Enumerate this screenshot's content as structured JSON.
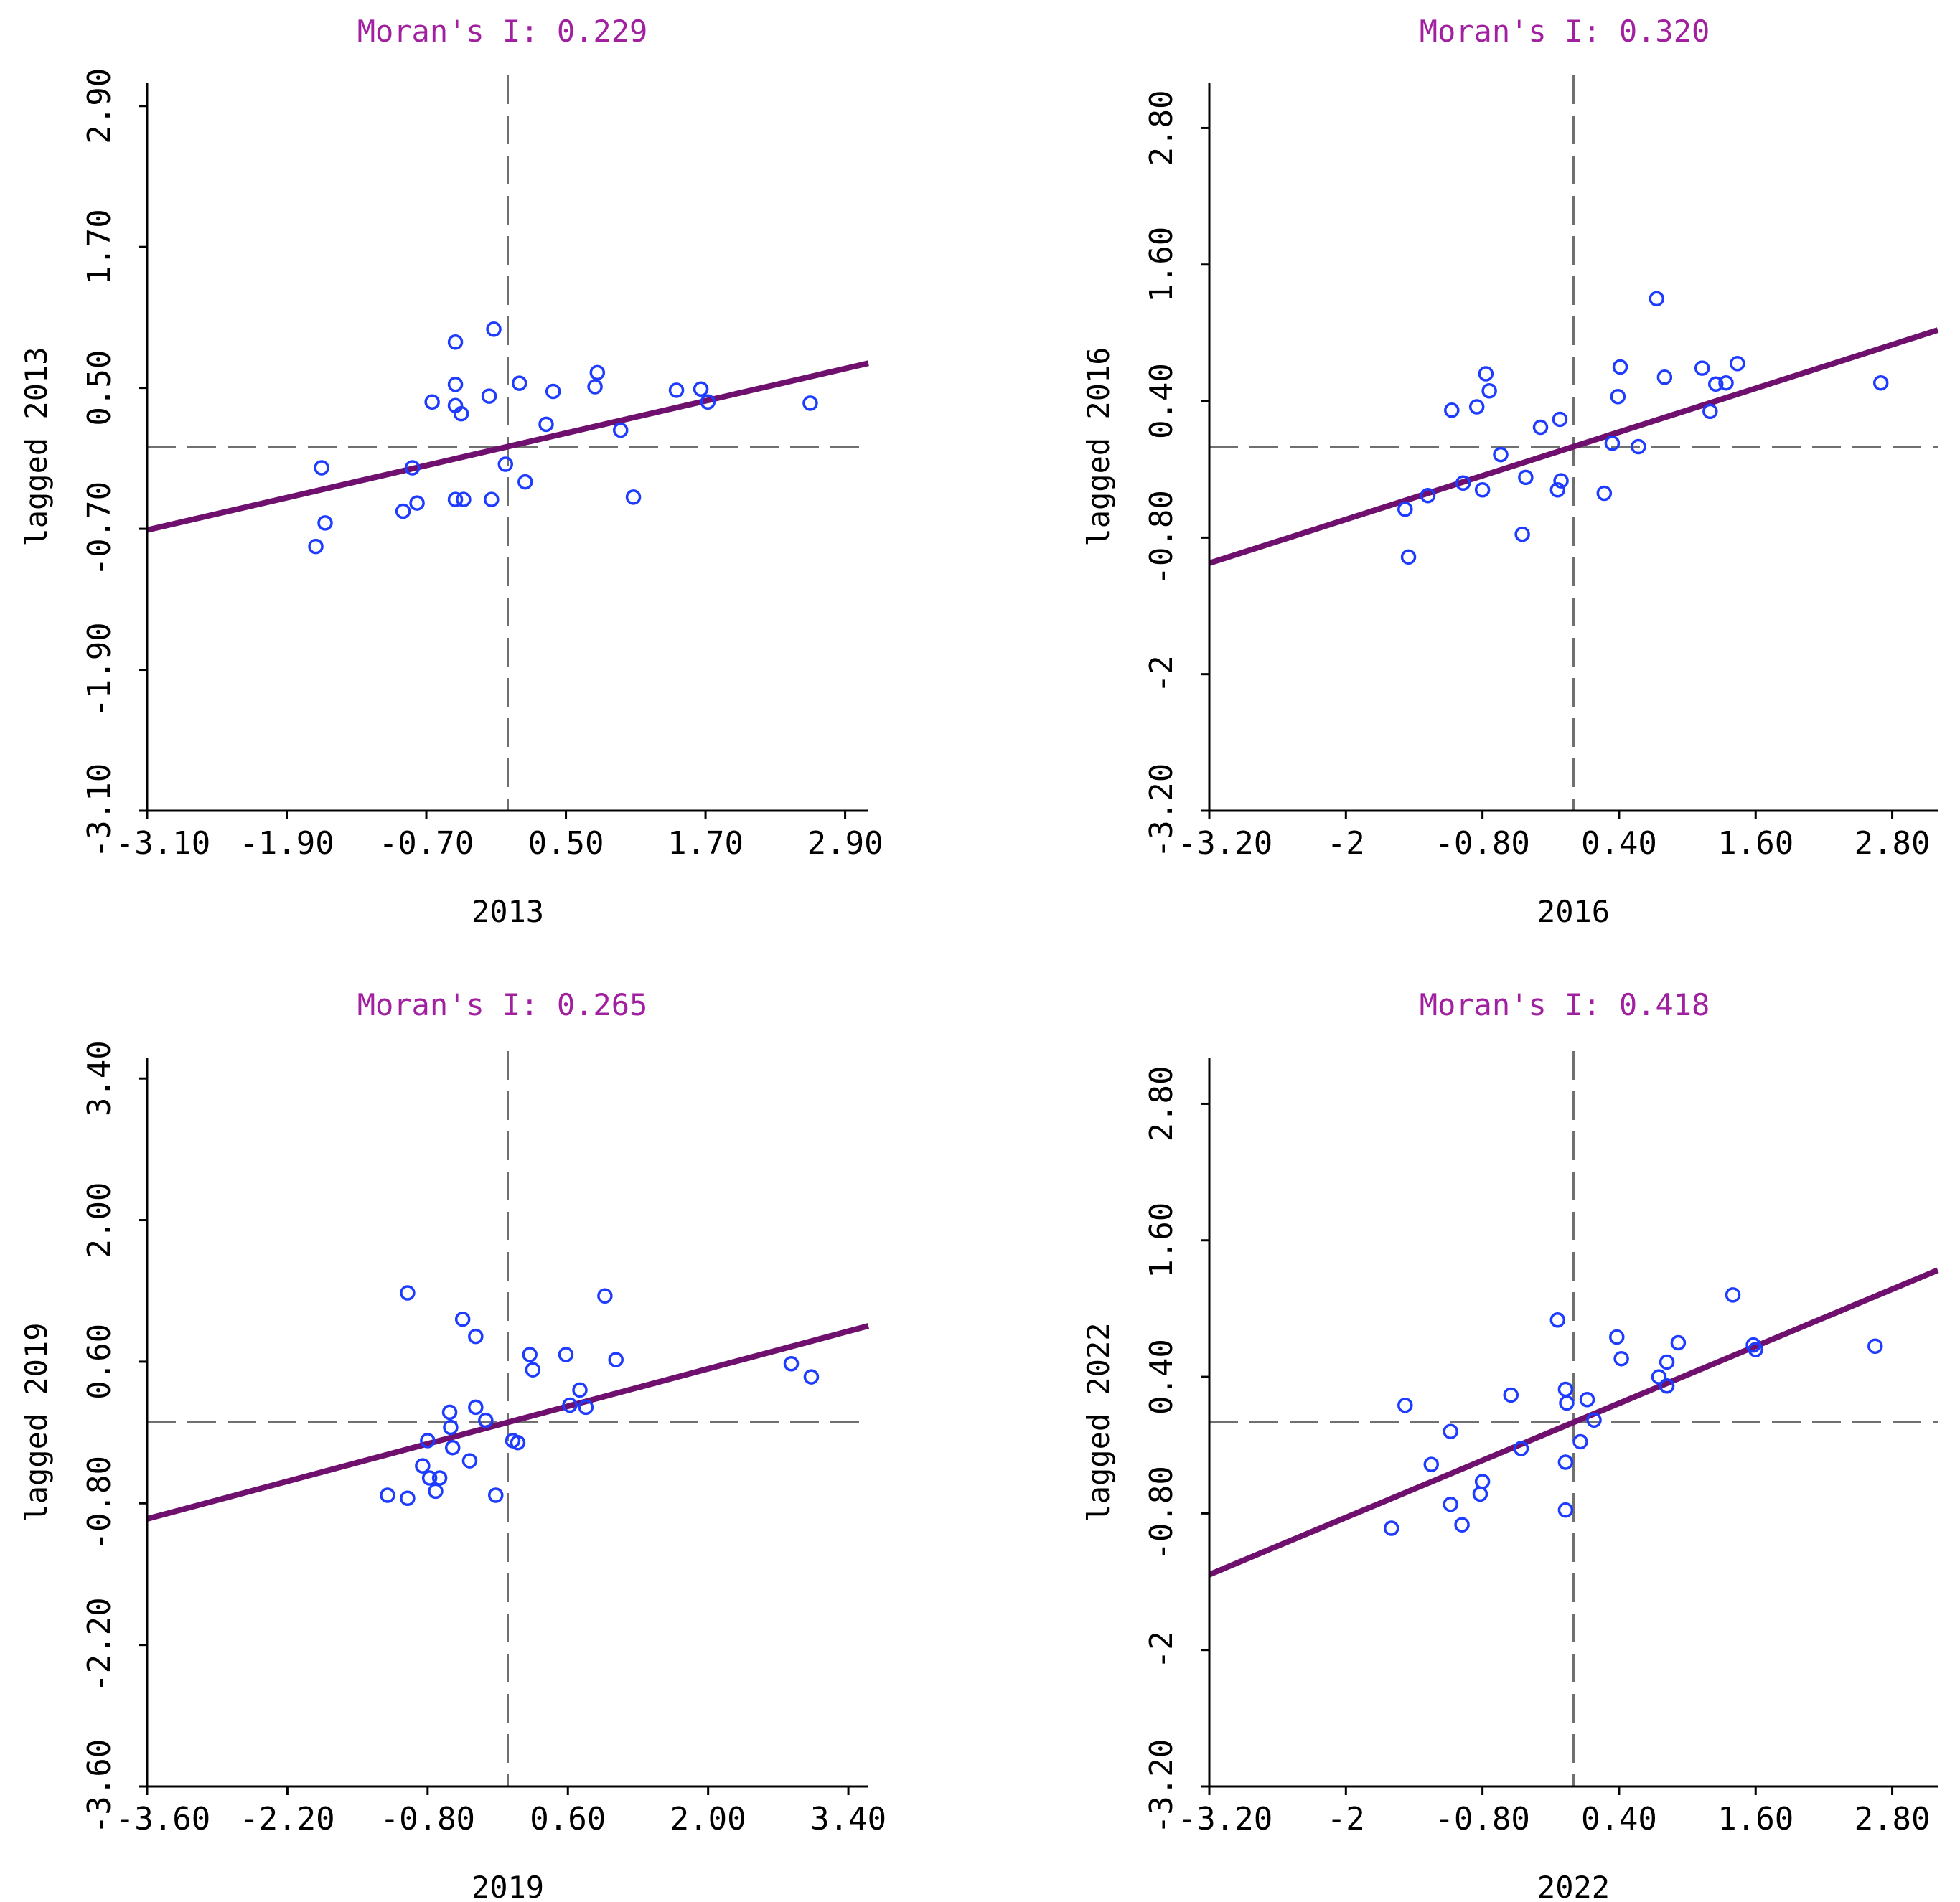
{
  "chart_data": [
    {
      "type": "scatter",
      "title": "Moran's I: 0.229",
      "xlabel": "2013",
      "ylabel": "lagged 2013",
      "xlim": [
        -3.1,
        3.1
      ],
      "ylim": [
        -3.1,
        3.1
      ],
      "xticks": [
        -3.1,
        -1.9,
        -0.7,
        0.5,
        1.7,
        2.9
      ],
      "xtick_labels": [
        "-3.10",
        "-1.90",
        "-0.70",
        "0.50",
        "1.70",
        "2.90"
      ],
      "yticks": [
        -3.1,
        -1.9,
        -0.7,
        0.5,
        1.7,
        2.9
      ],
      "ytick_labels": [
        "-3.10",
        "-1.90",
        "-0.70",
        "0.50",
        "1.70",
        "2.90"
      ],
      "slope": 0.229,
      "points": [
        {
          "x": -1.65,
          "y": -0.85
        },
        {
          "x": -1.57,
          "y": -0.65
        },
        {
          "x": -1.6,
          "y": -0.18
        },
        {
          "x": -0.9,
          "y": -0.55
        },
        {
          "x": -0.78,
          "y": -0.48
        },
        {
          "x": -0.82,
          "y": -0.18
        },
        {
          "x": -0.65,
          "y": 0.38
        },
        {
          "x": -0.45,
          "y": 0.35
        },
        {
          "x": -0.45,
          "y": 0.53
        },
        {
          "x": -0.45,
          "y": 0.89
        },
        {
          "x": -0.4,
          "y": 0.28
        },
        {
          "x": -0.45,
          "y": -0.45
        },
        {
          "x": -0.38,
          "y": -0.45
        },
        {
          "x": -0.16,
          "y": 0.43
        },
        {
          "x": -0.12,
          "y": 1.0
        },
        {
          "x": -0.14,
          "y": -0.45
        },
        {
          "x": -0.02,
          "y": -0.15
        },
        {
          "x": 0.1,
          "y": 0.54
        },
        {
          "x": 0.15,
          "y": -0.3
        },
        {
          "x": 0.33,
          "y": 0.19
        },
        {
          "x": 0.39,
          "y": 0.47
        },
        {
          "x": 0.75,
          "y": 0.51
        },
        {
          "x": 0.77,
          "y": 0.63
        },
        {
          "x": 0.97,
          "y": 0.14
        },
        {
          "x": 1.08,
          "y": -0.43
        },
        {
          "x": 1.45,
          "y": 0.48
        },
        {
          "x": 1.66,
          "y": 0.49
        },
        {
          "x": 1.72,
          "y": 0.38
        },
        {
          "x": 2.6,
          "y": 0.37
        }
      ]
    },
    {
      "type": "scatter",
      "title": "Moran's I: 0.320",
      "xlabel": "2016",
      "ylabel": "lagged 2016",
      "xlim": [
        -3.2,
        3.2
      ],
      "ylim": [
        -3.2,
        3.2
      ],
      "xticks": [
        -3.2,
        -2.0,
        -0.8,
        0.4,
        1.6,
        2.8
      ],
      "xtick_labels": [
        "-3.20",
        "-2",
        "-0.80",
        "0.40",
        "1.60",
        "2.80"
      ],
      "yticks": [
        -3.2,
        -2.0,
        -0.8,
        0.4,
        1.6,
        2.8
      ],
      "ytick_labels": [
        "-3.20",
        "-2",
        "-0.80",
        "0.40",
        "1.60",
        "2.80"
      ],
      "slope": 0.32,
      "points": [
        {
          "x": -1.48,
          "y": -0.55
        },
        {
          "x": -1.45,
          "y": -0.97
        },
        {
          "x": -1.28,
          "y": -0.43
        },
        {
          "x": -1.07,
          "y": 0.32
        },
        {
          "x": -0.97,
          "y": -0.32
        },
        {
          "x": -0.85,
          "y": 0.35
        },
        {
          "x": -0.8,
          "y": -0.38
        },
        {
          "x": -0.77,
          "y": 0.64
        },
        {
          "x": -0.74,
          "y": 0.49
        },
        {
          "x": -0.64,
          "y": -0.07
        },
        {
          "x": -0.45,
          "y": -0.77
        },
        {
          "x": -0.42,
          "y": -0.27
        },
        {
          "x": -0.29,
          "y": 0.17
        },
        {
          "x": -0.14,
          "y": -0.38
        },
        {
          "x": -0.11,
          "y": -0.3
        },
        {
          "x": -0.12,
          "y": 0.24
        },
        {
          "x": 0.27,
          "y": -0.41
        },
        {
          "x": 0.34,
          "y": 0.03
        },
        {
          "x": 0.39,
          "y": 0.44
        },
        {
          "x": 0.41,
          "y": 0.7
        },
        {
          "x": 0.57,
          "y": 0.0
        },
        {
          "x": 0.73,
          "y": 1.3
        },
        {
          "x": 0.8,
          "y": 0.61
        },
        {
          "x": 1.13,
          "y": 0.69
        },
        {
          "x": 1.2,
          "y": 0.31
        },
        {
          "x": 1.25,
          "y": 0.55
        },
        {
          "x": 1.34,
          "y": 0.56
        },
        {
          "x": 1.44,
          "y": 0.73
        },
        {
          "x": 2.7,
          "y": 0.56
        }
      ]
    },
    {
      "type": "scatter",
      "title": "Moran's I: 0.265",
      "xlabel": "2019",
      "ylabel": "lagged 2019",
      "xlim": [
        -3.6,
        3.6
      ],
      "ylim": [
        -3.6,
        3.6
      ],
      "xticks": [
        -3.6,
        -2.2,
        -0.8,
        0.6,
        2.0,
        3.4
      ],
      "xtick_labels": [
        "-3.60",
        "-2.20",
        "-0.80",
        "0.60",
        "2.00",
        "3.40"
      ],
      "yticks": [
        -3.6,
        -2.2,
        -0.8,
        0.6,
        2.0,
        3.4
      ],
      "ytick_labels": [
        "-3.60",
        "-2.20",
        "-0.80",
        "0.60",
        "2.00",
        "3.40"
      ],
      "slope": 0.265,
      "points": [
        {
          "x": -1.2,
          "y": -0.72
        },
        {
          "x": -1.0,
          "y": -0.75
        },
        {
          "x": -1.0,
          "y": 1.28
        },
        {
          "x": -0.85,
          "y": -0.43
        },
        {
          "x": -0.8,
          "y": -0.18
        },
        {
          "x": -0.78,
          "y": -0.55
        },
        {
          "x": -0.72,
          "y": -0.68
        },
        {
          "x": -0.68,
          "y": -0.55
        },
        {
          "x": -0.58,
          "y": 0.1
        },
        {
          "x": -0.57,
          "y": -0.05
        },
        {
          "x": -0.55,
          "y": -0.25
        },
        {
          "x": -0.45,
          "y": 1.02
        },
        {
          "x": -0.38,
          "y": -0.38
        },
        {
          "x": -0.32,
          "y": 0.85
        },
        {
          "x": -0.32,
          "y": 0.15
        },
        {
          "x": -0.22,
          "y": 0.02
        },
        {
          "x": -0.12,
          "y": -0.72
        },
        {
          "x": 0.05,
          "y": -0.18
        },
        {
          "x": 0.1,
          "y": -0.2
        },
        {
          "x": 0.22,
          "y": 0.67
        },
        {
          "x": 0.25,
          "y": 0.52
        },
        {
          "x": 0.58,
          "y": 0.67
        },
        {
          "x": 0.62,
          "y": 0.17
        },
        {
          "x": 0.72,
          "y": 0.32
        },
        {
          "x": 0.78,
          "y": 0.15
        },
        {
          "x": 0.97,
          "y": 1.25
        },
        {
          "x": 1.08,
          "y": 0.62
        },
        {
          "x": 2.83,
          "y": 0.58
        },
        {
          "x": 3.03,
          "y": 0.45
        }
      ]
    },
    {
      "type": "scatter",
      "title": "Moran's I: 0.418",
      "xlabel": "2022",
      "ylabel": "lagged 2022",
      "xlim": [
        -3.2,
        3.2
      ],
      "ylim": [
        -3.2,
        3.2
      ],
      "xticks": [
        -3.2,
        -2.0,
        -0.8,
        0.4,
        1.6,
        2.8
      ],
      "xtick_labels": [
        "-3.20",
        "-2",
        "-0.80",
        "0.40",
        "1.60",
        "2.80"
      ],
      "yticks": [
        -3.2,
        -2.0,
        -0.8,
        0.4,
        1.6,
        2.8
      ],
      "ytick_labels": [
        "-3.20",
        "-2",
        "-0.80",
        "0.40",
        "1.60",
        "2.80"
      ],
      "slope": 0.418,
      "points": [
        {
          "x": -1.6,
          "y": -0.93
        },
        {
          "x": -1.48,
          "y": 0.15
        },
        {
          "x": -1.25,
          "y": -0.37
        },
        {
          "x": -1.08,
          "y": -0.08
        },
        {
          "x": -1.08,
          "y": -0.72
        },
        {
          "x": -0.98,
          "y": -0.9
        },
        {
          "x": -0.82,
          "y": -0.63
        },
        {
          "x": -0.8,
          "y": -0.52
        },
        {
          "x": -0.55,
          "y": 0.24
        },
        {
          "x": -0.46,
          "y": -0.23
        },
        {
          "x": -0.14,
          "y": 0.9
        },
        {
          "x": -0.07,
          "y": 0.29
        },
        {
          "x": -0.06,
          "y": 0.17
        },
        {
          "x": -0.07,
          "y": -0.35
        },
        {
          "x": -0.07,
          "y": -0.77
        },
        {
          "x": 0.06,
          "y": -0.17
        },
        {
          "x": 0.12,
          "y": 0.2
        },
        {
          "x": 0.18,
          "y": 0.02
        },
        {
          "x": 0.38,
          "y": 0.75
        },
        {
          "x": 0.42,
          "y": 0.56
        },
        {
          "x": 0.75,
          "y": 0.4
        },
        {
          "x": 0.82,
          "y": 0.53
        },
        {
          "x": 0.82,
          "y": 0.32
        },
        {
          "x": 0.92,
          "y": 0.7
        },
        {
          "x": 1.4,
          "y": 1.12
        },
        {
          "x": 1.58,
          "y": 0.68
        },
        {
          "x": 1.6,
          "y": 0.64
        },
        {
          "x": 2.65,
          "y": 0.67
        }
      ]
    }
  ]
}
